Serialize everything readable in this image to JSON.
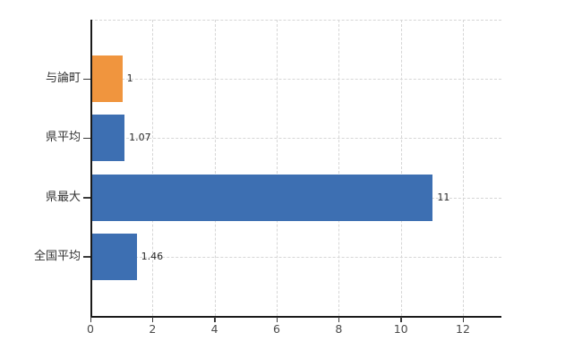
{
  "chart_data": {
    "type": "bar",
    "orientation": "horizontal",
    "title": "",
    "xlabel": "",
    "ylabel": "",
    "categories": [
      "与論町",
      "県平均",
      "県最大",
      "全国平均"
    ],
    "values": [
      1,
      1.07,
      11,
      1.46
    ],
    "value_labels": [
      "1",
      "1.07",
      "11",
      "1.46"
    ],
    "bar_colors": [
      "#f0953e",
      "#3d6fb2",
      "#3d6fb2",
      "#3d6fb2"
    ],
    "xlim": [
      0,
      13.25
    ],
    "xticks": [
      0,
      2,
      4,
      6,
      8,
      10,
      12
    ],
    "xtick_labels": [
      "0",
      "2",
      "4",
      "6",
      "8",
      "10",
      "12"
    ],
    "grid": true,
    "legend": false
  },
  "colors": {
    "highlight_bar": "#f0953e",
    "default_bar": "#3d6fb2",
    "grid_line": "#d6d6d6",
    "axis_line": "#1a1a1a",
    "category_text": "#333333",
    "value_text": "#262626",
    "tick_text": "#4a4a4a"
  }
}
